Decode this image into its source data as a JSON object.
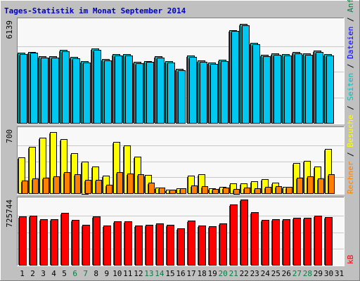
{
  "title": "Tages-Statistik im Monat September 2014",
  "colors": {
    "background": "#C0C0C0",
    "panel": "#F8F8F8",
    "grid": "#C8C8C8",
    "hits": "#00C0C0",
    "files": "#00C8F0",
    "pages": "#FFFF00",
    "visits": "#FF8000",
    "kbytes": "#FF0000",
    "label_hits": "#008040",
    "label_files": "#0000FF",
    "label_pages": "#00C0C0",
    "label_visits": "#FF8000",
    "label_kbytes": "#FF0000",
    "weekend": "#008040"
  },
  "chart_data": {
    "type": "bar",
    "x": [
      "1",
      "2",
      "3",
      "4",
      "5",
      "6",
      "7",
      "8",
      "9",
      "10",
      "11",
      "12",
      "13",
      "14",
      "15",
      "16",
      "17",
      "18",
      "19",
      "20",
      "21",
      "22",
      "23",
      "24",
      "25",
      "26",
      "27",
      "28",
      "29",
      "30",
      "31"
    ],
    "weekend_days": [
      "6",
      "7",
      "13",
      "14",
      "20",
      "21",
      "27",
      "28"
    ],
    "panels": [
      {
        "id": "top",
        "max_label": "6139",
        "ymax": 6139,
        "series": [
          {
            "name": "Anfragen",
            "color_key": "hits",
            "values": [
              4208,
              4243,
              4005,
              3996,
              4384,
              3959,
              3704,
              4476,
              3839,
              4134,
              4117,
              3662,
              3721,
              4015,
              3682,
              3247,
              4056,
              3731,
              3604,
              3788,
              5568,
              5920,
              4774,
              4081,
              4159,
              4108,
              4266,
              4159,
              4333,
              4133,
              0
            ]
          },
          {
            "name": "Dateien",
            "color_key": "files",
            "values": [
              4133,
              4200,
              3920,
              3900,
              4300,
              3880,
              3620,
              4380,
              3760,
              4050,
              4040,
              3580,
              3640,
              3930,
              3600,
              3170,
              3970,
              3650,
              3520,
              3710,
              5500,
              5850,
              4700,
              3990,
              4080,
              4030,
              4180,
              4080,
              4250,
              4050,
              0
            ]
          }
        ]
      },
      {
        "id": "middle",
        "max_label": "700",
        "ymax": 700,
        "series": [
          {
            "name": "Seiten",
            "color_key": "pages",
            "values": [
              391,
              509,
              604,
              673,
              595,
              438,
              350,
              289,
              195,
              562,
              520,
              400,
              200,
              63,
              37,
              54,
              193,
              205,
              54,
              72,
              108,
              109,
              131,
              151,
              117,
              67,
              329,
              352,
              292,
              487,
              0
            ]
          },
          {
            "name": "Besuche",
            "color_key": "visits",
            "values": [
              135,
              158,
              169,
              183,
              227,
              206,
              143,
              147,
              92,
              228,
              213,
              206,
              116,
              65,
              40,
              52,
              82,
              79,
              45,
              58,
              50,
              58,
              52,
              68,
              80,
              72,
              166,
              186,
              160,
              210,
              0
            ]
          }
        ]
      },
      {
        "id": "bottom",
        "max_label": "725744",
        "ymax": 725744,
        "series": [
          {
            "name": "kB",
            "color_key": "kbytes",
            "values": [
              540000,
              550000,
              506000,
              506000,
              578000,
              500000,
              442000,
              540000,
              434000,
              484000,
              484000,
              435000,
              444000,
              464000,
              444000,
              402000,
              494000,
              438000,
              430000,
              459000,
              675000,
              725744,
              587000,
              501000,
              510000,
              509000,
              526000,
              519000,
              546000,
              531000,
              0
            ]
          }
        ]
      }
    ],
    "right_labels_top": [
      "Anfragen",
      "/",
      "Dateien",
      "/",
      "Seiten",
      "/",
      "Besuche",
      "/",
      "Rechner"
    ],
    "right_label_bottom": "kB"
  }
}
